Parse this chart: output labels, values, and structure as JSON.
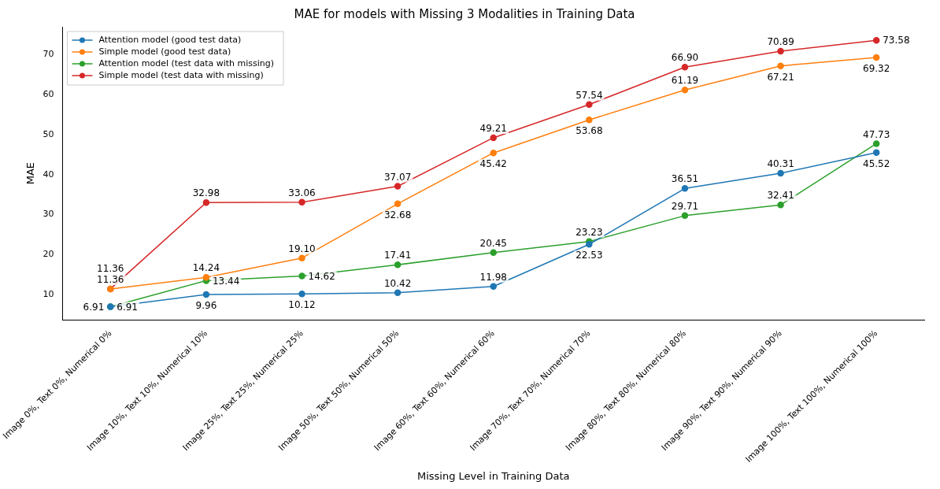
{
  "chart_data": {
    "type": "line",
    "title": "MAE for models with Missing 3 Modalities in Training Data",
    "xlabel": "Missing Level in Training Data",
    "ylabel": "MAE",
    "categories": [
      "Image 0%, Text 0%, Numerical 0%",
      "Image 10%, Text 10%, Numerical 10%",
      "Image 25%, Text 25%, Numerical 25%",
      "Image 50%, Text 50%, Numerical 50%",
      "Image 60%, Text 60%, Numerical 60%",
      "Image 70%, Text 70%, Numerical 70%",
      "Image 80%, Text 80%, Numerical 80%",
      "Image 90%, Text 90%, Numerical 90%",
      "Image 100%, Text 100%, Numerical 100%"
    ],
    "series": [
      {
        "name": "Attention model (good test data)",
        "color": "#1f77b4",
        "values": [
          6.91,
          9.96,
          10.12,
          10.42,
          11.98,
          22.53,
          36.51,
          40.31,
          45.52
        ],
        "value_labels": [
          "6.91",
          "9.96",
          "10.12",
          "10.42",
          "11.98",
          "22.53",
          "36.51",
          "40.31",
          "45.52"
        ]
      },
      {
        "name": "Simple model (good test data)",
        "color": "#ff7f0e",
        "values": [
          11.36,
          14.24,
          19.1,
          32.68,
          45.42,
          53.68,
          61.19,
          67.21,
          69.32
        ],
        "value_labels": [
          "11.36",
          "14.24",
          "19.10",
          "32.68",
          "45.42",
          "53.68",
          "61.19",
          "67.21",
          "69.32"
        ]
      },
      {
        "name": "Attention model (test data with missing)",
        "color": "#2ca02c",
        "values": [
          6.91,
          13.44,
          14.62,
          17.41,
          20.45,
          23.23,
          29.71,
          32.41,
          47.73
        ],
        "value_labels": [
          "6.91",
          "13.44",
          "14.62",
          "17.41",
          "20.45",
          "23.23",
          "29.71",
          "32.41",
          "47.73"
        ]
      },
      {
        "name": "Simple model (test data with missing)",
        "color": "#d62728",
        "values": [
          11.36,
          32.98,
          33.06,
          37.07,
          49.21,
          57.54,
          66.9,
          70.89,
          73.58
        ],
        "value_labels": [
          "11.36",
          "32.98",
          "33.06",
          "37.07",
          "49.21",
          "57.54",
          "66.90",
          "70.89",
          "73.58"
        ]
      }
    ],
    "ylim": [
      3.6,
      77
    ],
    "yticks": [
      10,
      20,
      30,
      40,
      50,
      60,
      70
    ],
    "grid": false,
    "legend": "top left",
    "marker": "circle",
    "line_style": "solid"
  }
}
